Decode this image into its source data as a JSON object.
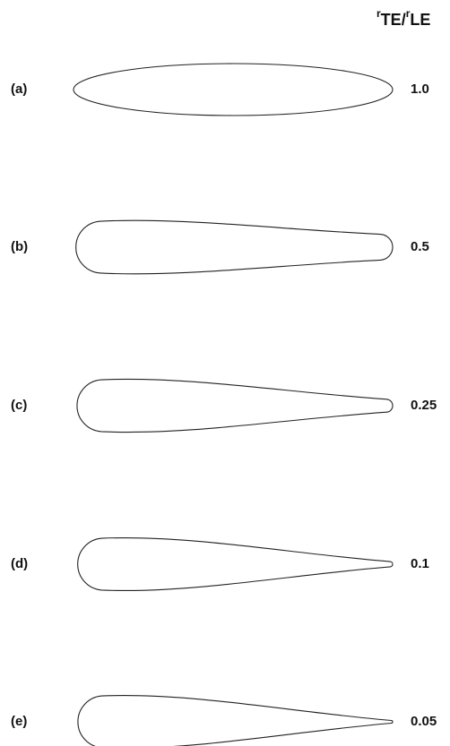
{
  "header": {
    "r1": "r",
    "sub1": "TE",
    "slash": "/",
    "r2": "r",
    "sub2": "LE"
  },
  "profiles": [
    {
      "label": "(a)",
      "ratio": 1.0,
      "ratio_text": "1.0"
    },
    {
      "label": "(b)",
      "ratio": 0.5,
      "ratio_text": "0.5"
    },
    {
      "label": "(c)",
      "ratio": 0.25,
      "ratio_text": "0.25"
    },
    {
      "label": "(d)",
      "ratio": 0.1,
      "ratio_text": "0.1"
    },
    {
      "label": "(e)",
      "ratio": 0.05,
      "ratio_text": "0.05"
    }
  ],
  "colors": {
    "stroke": "#222222",
    "text": "#111111"
  }
}
